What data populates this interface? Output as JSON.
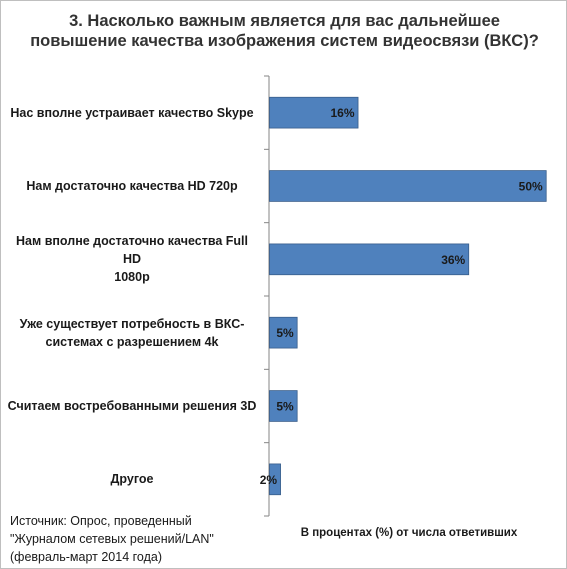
{
  "chart_data": {
    "type": "bar",
    "orientation": "horizontal",
    "title_lines": [
      "3. Насколько важным является для вас дальнейшее",
      "повышение качества изображения систем видеосвязи (ВКС)?"
    ],
    "categories": [
      "Нас вполне устраивает качество Skype",
      "Нам достаточно качества  HD 720p",
      "Нам вполне достаточно качества Full HD 1080p",
      "Уже существует потребность в ВКС-системах с разрешением 4k",
      "Считаем востребованными  решения 3D",
      "Другое"
    ],
    "category_lines": [
      [
        "Нас вполне устраивает качество Skype"
      ],
      [
        "Нам достаточно качества  HD 720p"
      ],
      [
        "Нам вполне достаточно качества Full HD",
        "1080p"
      ],
      [
        "Уже существует потребность в ВКС-",
        "системах с разрешением 4k"
      ],
      [
        "Считаем востребованными  решения 3D"
      ],
      [
        "Другое"
      ]
    ],
    "values": [
      16,
      50,
      36,
      5,
      5,
      2
    ],
    "data_labels": [
      "16%",
      "50%",
      "36%",
      "5%",
      "5%",
      "2%"
    ],
    "xlabel": "В процентах (%) от числа ответивших",
    "xlim": [
      0,
      50
    ],
    "grid": false,
    "legend": "none",
    "bar_color": "#4f81bd",
    "bar_border_color": "#385d8a",
    "axis_color": "#868686"
  },
  "source_lines": [
    "Источник: Опрос, проведенный",
    "\"Журналом сетевых решений/LAN\"",
    "(февраль-март 2014 года)"
  ]
}
